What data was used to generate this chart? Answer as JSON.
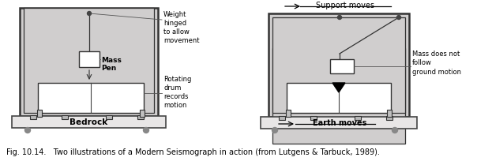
{
  "fig_width": 6.23,
  "fig_height": 2.04,
  "dpi": 100,
  "bg_color": "#ffffff",
  "frame_fill": "#d0cece",
  "bedrock_fill": "#e8e6e6",
  "drum_fill": "#ffffff",
  "mass_fill": "#ffffff",
  "caption": "Fig. 10.14.   Two illustrations of a Modern Seismograph in action (from Lutgens & Tarbuck, 1989).",
  "d1_label_weight": "Weight\nhinged\nto allow\nmovement",
  "d1_label_mass": "Mass\nPen",
  "d1_label_drum": "Rotating\ndrum\nrecords\nmotion",
  "d1_label_bedrock": "Bedrock",
  "d2_label_support": "Support moves",
  "d2_label_mass": "Mass does not\nfollow\nground motion",
  "d2_label_earth": "Earth moves"
}
